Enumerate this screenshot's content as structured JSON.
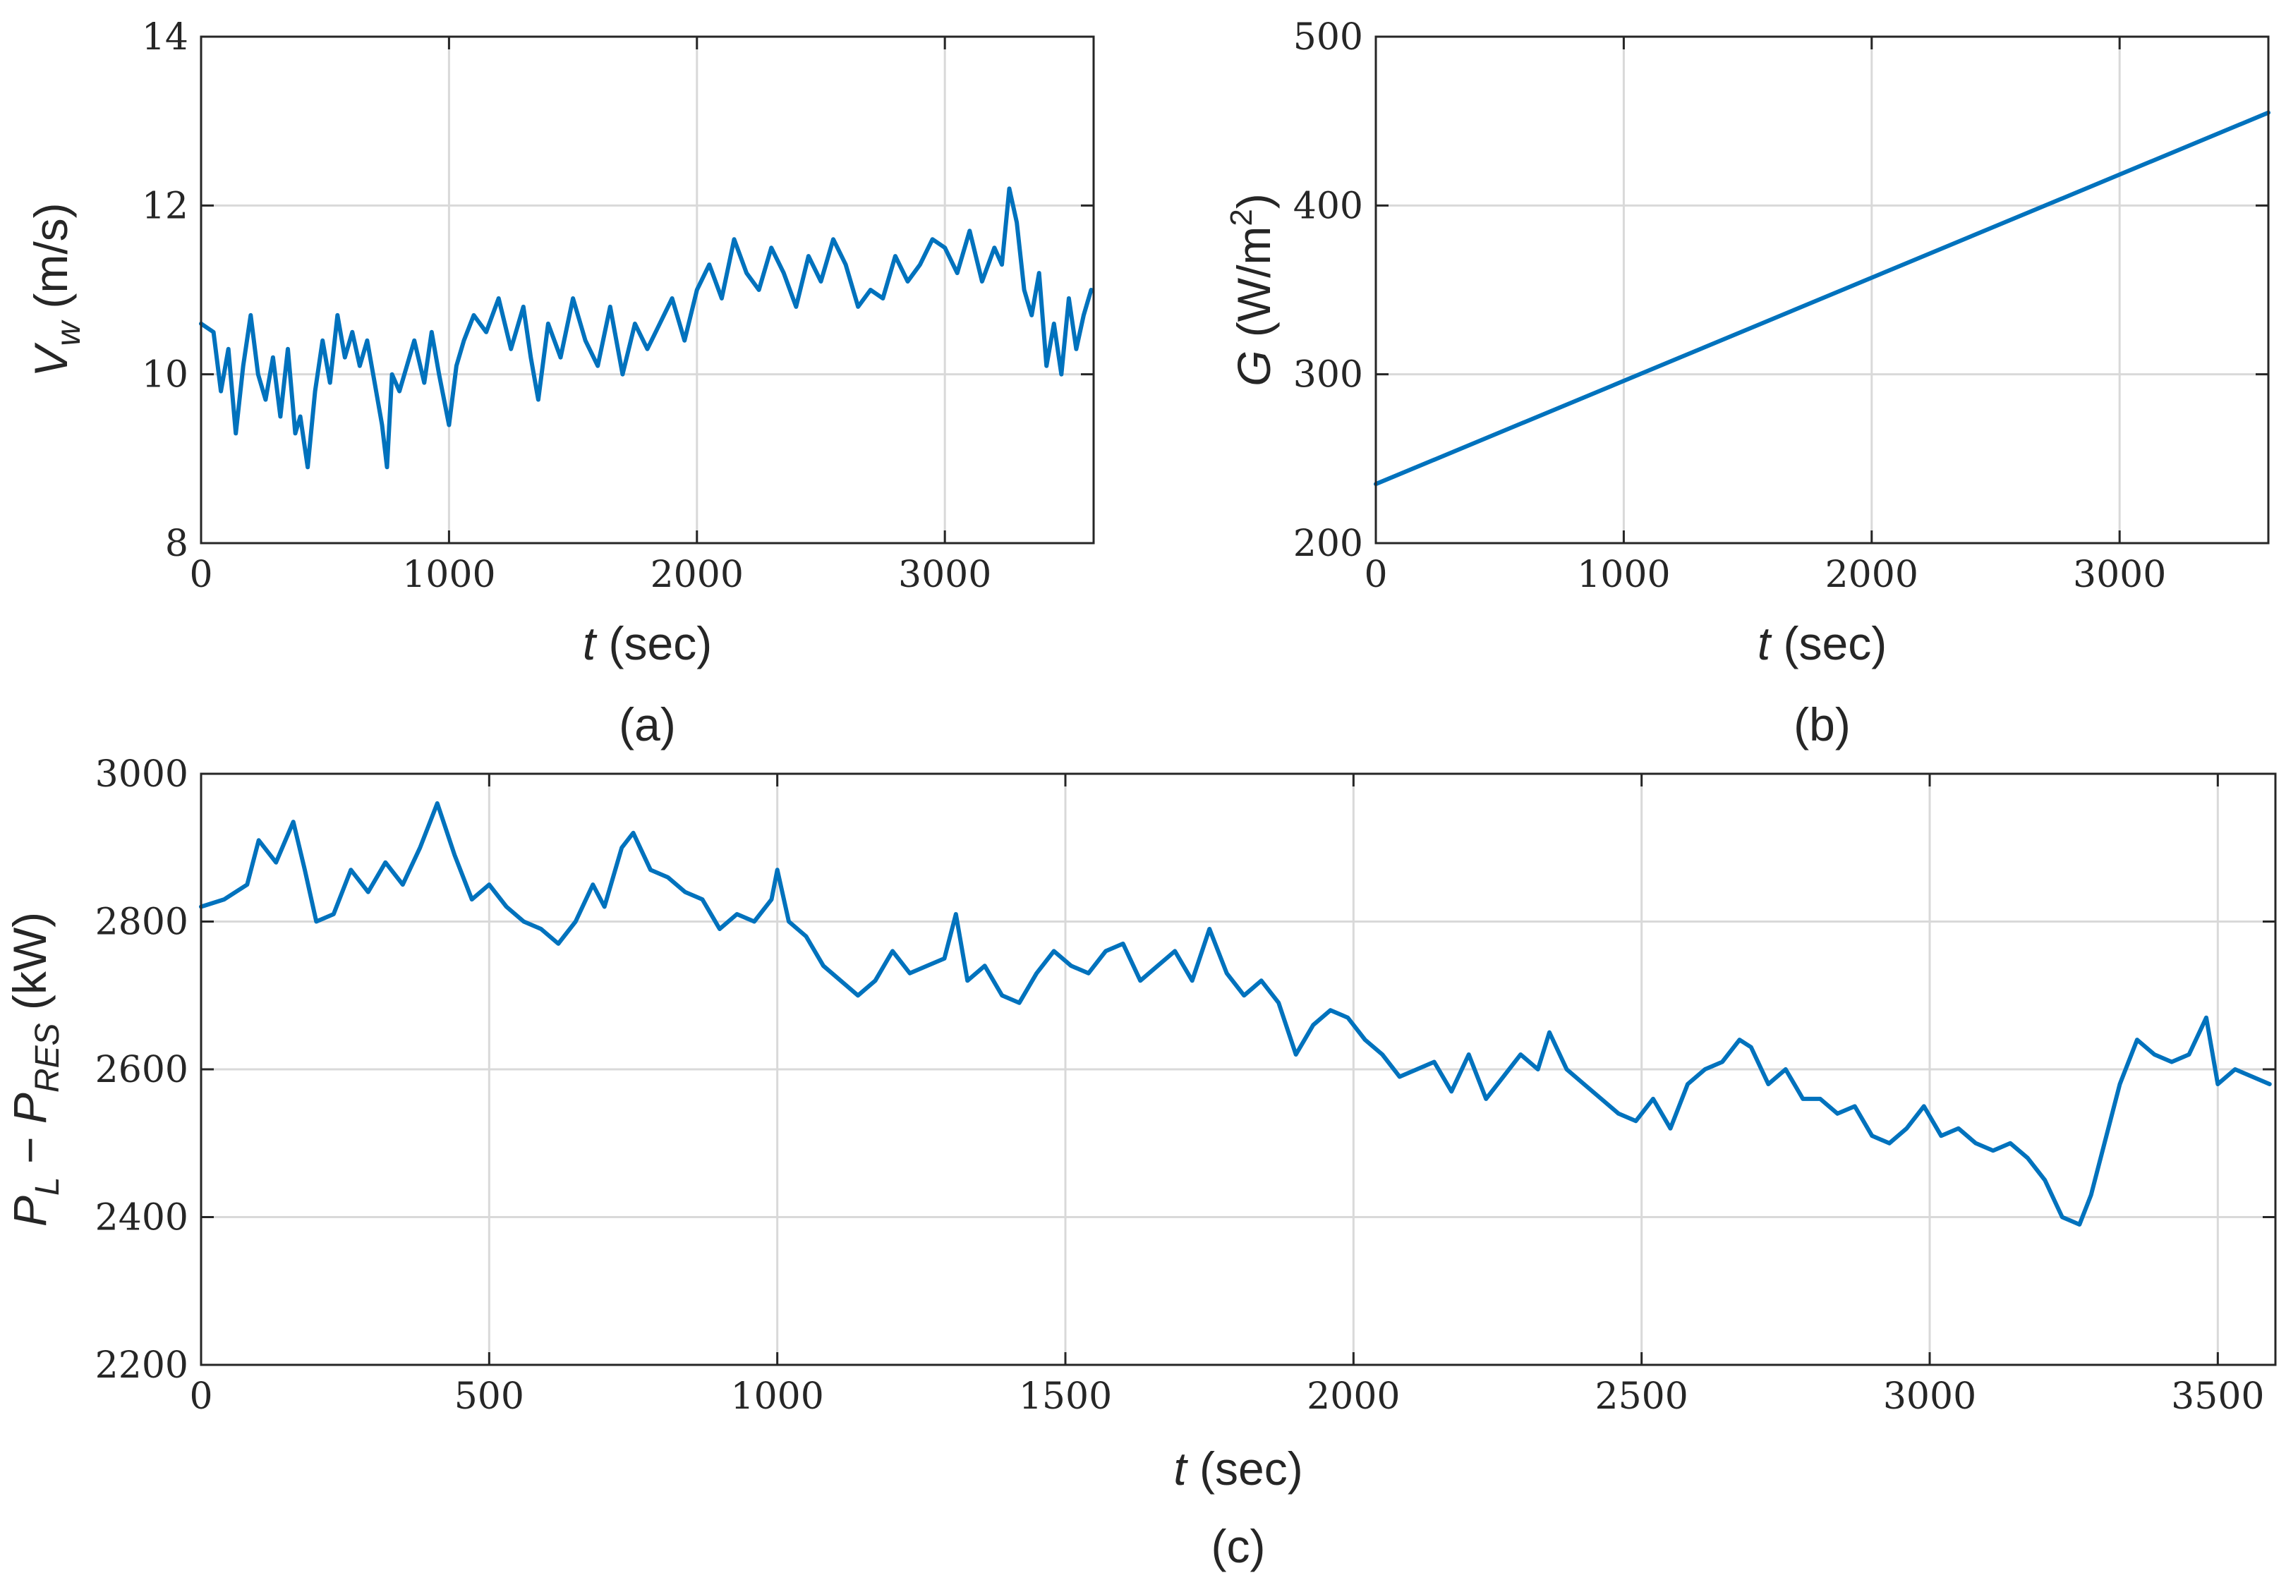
{
  "colors": {
    "series": "#0072BD",
    "axis": "#262626",
    "grid": "#d9d9d9"
  },
  "chart_data": [
    {
      "id": "a",
      "type": "line",
      "caption": "(a)",
      "xlabel": {
        "var": "t",
        "unit": " (sec)"
      },
      "ylabel": {
        "var": "V",
        "sub": "w",
        "unit": " (m/s)"
      },
      "xlim": [
        0,
        3600
      ],
      "ylim": [
        8,
        14
      ],
      "xticks": [
        0,
        1000,
        2000,
        3000
      ],
      "yticks": [
        8,
        10,
        12,
        14
      ],
      "grid": true,
      "series": [
        {
          "name": "V_w",
          "x": [
            0,
            50,
            80,
            110,
            140,
            170,
            200,
            230,
            260,
            290,
            320,
            350,
            380,
            400,
            430,
            460,
            490,
            520,
            550,
            580,
            610,
            640,
            670,
            700,
            730,
            750,
            770,
            800,
            830,
            860,
            900,
            930,
            960,
            1000,
            1030,
            1060,
            1100,
            1150,
            1200,
            1250,
            1300,
            1330,
            1360,
            1400,
            1450,
            1500,
            1550,
            1600,
            1650,
            1700,
            1750,
            1800,
            1850,
            1900,
            1950,
            2000,
            2050,
            2100,
            2150,
            2200,
            2250,
            2300,
            2350,
            2400,
            2450,
            2500,
            2550,
            2600,
            2650,
            2700,
            2750,
            2800,
            2850,
            2900,
            2950,
            3000,
            3050,
            3100,
            3150,
            3200,
            3230,
            3260,
            3290,
            3320,
            3350,
            3380,
            3410,
            3440,
            3470,
            3500,
            3530,
            3560,
            3590
          ],
          "values": [
            10.6,
            10.5,
            9.8,
            10.3,
            9.3,
            10.1,
            10.7,
            10.0,
            9.7,
            10.2,
            9.5,
            10.3,
            9.3,
            9.5,
            8.9,
            9.8,
            10.4,
            9.9,
            10.7,
            10.2,
            10.5,
            10.1,
            10.4,
            9.9,
            9.4,
            8.9,
            10.0,
            9.8,
            10.1,
            10.4,
            9.9,
            10.5,
            10.0,
            9.4,
            10.1,
            10.4,
            10.7,
            10.5,
            10.9,
            10.3,
            10.8,
            10.2,
            9.7,
            10.6,
            10.2,
            10.9,
            10.4,
            10.1,
            10.8,
            10.0,
            10.6,
            10.3,
            10.6,
            10.9,
            10.4,
            11.0,
            11.3,
            10.9,
            11.6,
            11.2,
            11.0,
            11.5,
            11.2,
            10.8,
            11.4,
            11.1,
            11.6,
            11.3,
            10.8,
            11.0,
            10.9,
            11.4,
            11.1,
            11.3,
            11.6,
            11.5,
            11.2,
            11.7,
            11.1,
            11.5,
            11.3,
            12.2,
            11.8,
            11.0,
            10.7,
            11.2,
            10.1,
            10.6,
            10.0,
            10.9,
            10.3,
            10.7,
            11.0
          ]
        }
      ]
    },
    {
      "id": "b",
      "type": "line",
      "caption": "(b)",
      "xlabel": {
        "var": "t",
        "unit": " (sec)"
      },
      "ylabel": {
        "var": "G",
        "unit": " (W/m",
        "sup": "2",
        "close": ")"
      },
      "xlim": [
        0,
        3600
      ],
      "ylim": [
        200,
        500
      ],
      "xticks": [
        0,
        1000,
        2000,
        3000
      ],
      "yticks": [
        200,
        300,
        400,
        500
      ],
      "grid": true,
      "series": [
        {
          "name": "G",
          "x": [
            0,
            3600
          ],
          "values": [
            235,
            455
          ]
        }
      ]
    },
    {
      "id": "c",
      "type": "line",
      "caption": "(c)",
      "xlabel": {
        "var": "t",
        "unit": " (sec)"
      },
      "ylabel": {
        "var": "P",
        "sub": "L",
        "mid": " − ",
        "var2": "P",
        "sub2": "RES",
        "unit": " (kW)"
      },
      "xlim": [
        0,
        3600
      ],
      "ylim": [
        2200,
        3000
      ],
      "xticks": [
        0,
        500,
        1000,
        1500,
        2000,
        2500,
        3000,
        3500
      ],
      "yticks": [
        2200,
        2400,
        2600,
        2800,
        3000
      ],
      "grid": true,
      "series": [
        {
          "name": "P_L - P_RES",
          "x": [
            0,
            40,
            80,
            100,
            130,
            160,
            180,
            200,
            230,
            260,
            290,
            320,
            350,
            380,
            410,
            440,
            470,
            500,
            530,
            560,
            590,
            620,
            650,
            680,
            700,
            730,
            750,
            780,
            810,
            840,
            870,
            900,
            930,
            960,
            990,
            1000,
            1020,
            1050,
            1080,
            1110,
            1140,
            1170,
            1200,
            1230,
            1260,
            1290,
            1310,
            1330,
            1360,
            1390,
            1420,
            1450,
            1480,
            1510,
            1540,
            1570,
            1600,
            1630,
            1660,
            1690,
            1720,
            1750,
            1780,
            1810,
            1840,
            1870,
            1900,
            1930,
            1960,
            1990,
            2020,
            2050,
            2080,
            2110,
            2140,
            2170,
            2200,
            2230,
            2260,
            2290,
            2320,
            2340,
            2370,
            2400,
            2430,
            2460,
            2490,
            2520,
            2550,
            2580,
            2610,
            2640,
            2670,
            2690,
            2720,
            2750,
            2780,
            2810,
            2840,
            2870,
            2900,
            2930,
            2960,
            2990,
            3020,
            3050,
            3080,
            3110,
            3140,
            3170,
            3200,
            3230,
            3260,
            3280,
            3300,
            3330,
            3360,
            3390,
            3420,
            3450,
            3480,
            3500,
            3530,
            3560,
            3590
          ],
          "values": [
            2820,
            2830,
            2850,
            2910,
            2880,
            2935,
            2870,
            2800,
            2810,
            2870,
            2840,
            2880,
            2850,
            2900,
            2960,
            2890,
            2830,
            2850,
            2820,
            2800,
            2790,
            2770,
            2800,
            2850,
            2820,
            2900,
            2920,
            2870,
            2860,
            2840,
            2830,
            2790,
            2810,
            2800,
            2830,
            2870,
            2800,
            2780,
            2740,
            2720,
            2700,
            2720,
            2760,
            2730,
            2740,
            2750,
            2810,
            2720,
            2740,
            2700,
            2690,
            2730,
            2760,
            2740,
            2730,
            2760,
            2770,
            2720,
            2740,
            2760,
            2720,
            2790,
            2730,
            2700,
            2720,
            2690,
            2620,
            2660,
            2680,
            2670,
            2640,
            2620,
            2590,
            2600,
            2610,
            2570,
            2620,
            2560,
            2590,
            2620,
            2600,
            2650,
            2600,
            2580,
            2560,
            2540,
            2530,
            2560,
            2520,
            2580,
            2600,
            2610,
            2640,
            2630,
            2580,
            2600,
            2560,
            2560,
            2540,
            2550,
            2510,
            2500,
            2520,
            2550,
            2510,
            2520,
            2500,
            2490,
            2500,
            2480,
            2450,
            2400,
            2390,
            2430,
            2490,
            2580,
            2640,
            2620,
            2610,
            2620,
            2670,
            2580,
            2600,
            2590,
            2580
          ]
        }
      ]
    }
  ]
}
